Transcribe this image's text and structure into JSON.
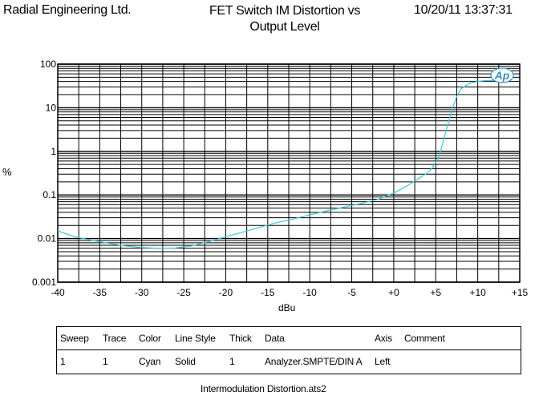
{
  "header": {
    "company": "Radial Engineering Ltd.",
    "title": "FET Switch IM Distortion vs Output Level",
    "timestamp": "10/20/11 13:37:31"
  },
  "chart_data": {
    "type": "line",
    "xlabel": "dBu",
    "ylabel": "%",
    "xlim": [
      -40,
      15
    ],
    "ylim": [
      0.001,
      100
    ],
    "yscale": "log",
    "x_ticks": [
      -40,
      -35,
      -30,
      -25,
      -20,
      -15,
      -10,
      -5,
      0,
      5,
      10,
      15
    ],
    "x_tick_labels": [
      "-40",
      "-35",
      "-30",
      "-25",
      "-20",
      "-15",
      "-10",
      "-5",
      "+0",
      "+5",
      "+10",
      "+15"
    ],
    "y_ticks": [
      0.001,
      0.01,
      0.1,
      1,
      10,
      100
    ],
    "y_tick_labels": [
      "0.001",
      "0.01",
      "0.1",
      "1",
      "10",
      "100"
    ],
    "grid": true,
    "logo": "Ap",
    "series": [
      {
        "color": "#3cc8d8",
        "x": [
          -40,
          -38,
          -36,
          -34,
          -32,
          -30,
          -28,
          -26,
          -24,
          -22,
          -20,
          -18,
          -16,
          -14,
          -12,
          -10,
          -8,
          -6,
          -4,
          -2,
          0,
          1,
          2,
          3,
          4,
          4.5,
          5,
          5.5,
          6,
          6.5,
          7,
          7.5,
          8,
          9,
          10,
          11,
          12,
          13,
          14
        ],
        "y": [
          0.015,
          0.011,
          0.0092,
          0.0078,
          0.0068,
          0.0062,
          0.006,
          0.0061,
          0.0068,
          0.0085,
          0.011,
          0.014,
          0.018,
          0.023,
          0.028,
          0.035,
          0.043,
          0.052,
          0.063,
          0.078,
          0.11,
          0.14,
          0.18,
          0.24,
          0.32,
          0.4,
          0.55,
          0.9,
          2,
          4.5,
          10,
          18,
          27,
          36,
          40,
          42,
          42,
          43,
          43
        ]
      }
    ]
  },
  "legend_table": {
    "headers": [
      "Sweep",
      "Trace",
      "Color",
      "Line Style",
      "Thick",
      "Data",
      "Axis",
      "Comment"
    ],
    "row": [
      "1",
      "1",
      "Cyan",
      "Solid",
      "1",
      "Analyzer.SMPTE/DIN A",
      "Left",
      ""
    ]
  },
  "footer": "Intermodulation Distortion.ats2"
}
